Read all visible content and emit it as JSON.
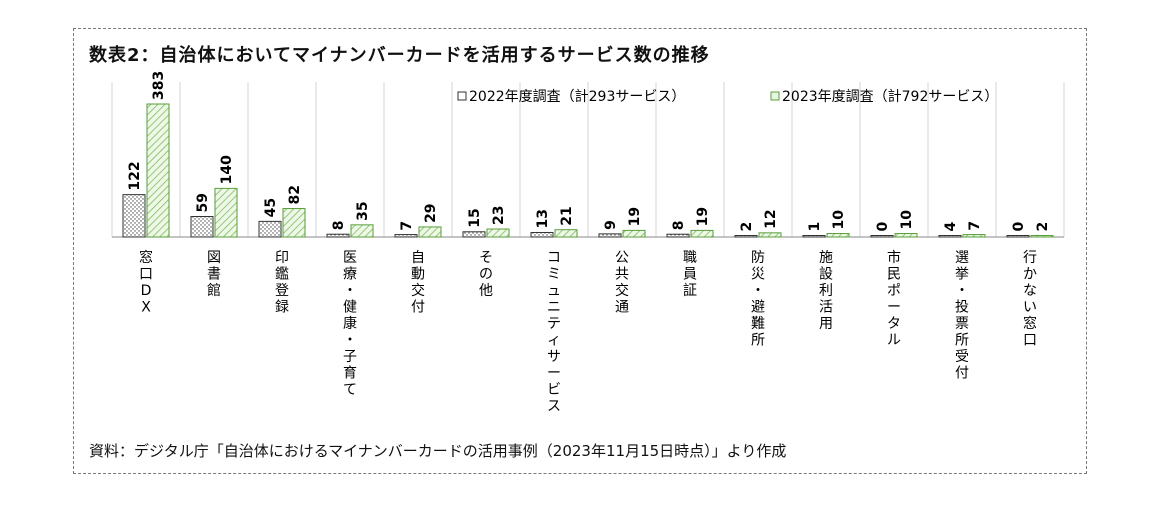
{
  "title": "数表2：自治体においてマイナンバーカードを活用するサービス数の推移",
  "source": "資料：デジタル庁「自治体におけるマイナンバーカードの活用事例（2023年11月15日時点）」より作成",
  "colors": {
    "series_2022_fill": "#ffffff",
    "series_2023_fill": "#e8f5e0",
    "series_2023_stroke": "#7bbf5a",
    "axis": "#8a8a8a"
  },
  "chart_data": {
    "type": "bar",
    "title": "数表2：自治体においてマイナンバーカードを活用するサービス数の推移",
    "xlabel": "",
    "ylabel": "",
    "ylim": [
      0,
      400
    ],
    "grid": "vertical category separators",
    "legend_position": "top-right",
    "categories": [
      "窓口DX",
      "図書館",
      "印鑑登録",
      "医療・健康・子育て",
      "自動交付",
      "その他",
      "コミュニティサービス",
      "公共交通",
      "職員証",
      "防災・避難所",
      "施設利活用",
      "市民ポータル",
      "選挙・投票所受付",
      "行かない窓口"
    ],
    "series": [
      {
        "name": "2022年度調査（計293サービス）",
        "values": [
          122,
          59,
          45,
          8,
          7,
          15,
          13,
          9,
          8,
          2,
          1,
          0,
          4,
          0
        ]
      },
      {
        "name": "2023年度調査（計792サービス）",
        "values": [
          383,
          140,
          82,
          35,
          29,
          23,
          21,
          19,
          19,
          12,
          10,
          10,
          7,
          2
        ]
      }
    ]
  }
}
